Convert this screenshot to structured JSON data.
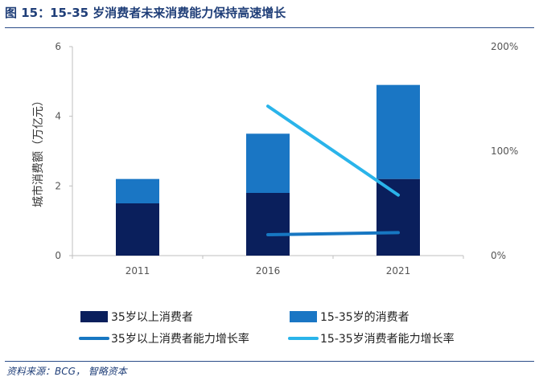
{
  "header": {
    "title": "图 15：15-35 岁消费者未来消费能力保持高速增长"
  },
  "footer": {
    "source": "资料来源：BCG，  智略资本"
  },
  "colors": {
    "bar_over35": "#0a1f5c",
    "bar_15_35": "#1a76c4",
    "line_over35": "#1777c2",
    "line_15_35": "#2ab4ea",
    "title": "#1f3e78"
  },
  "chart_data": {
    "type": "bar",
    "stacked": true,
    "title": "",
    "categories": [
      "2011",
      "2016",
      "2021"
    ],
    "ylabel": "城市消费额（万亿元）",
    "ylim": [
      0,
      6
    ],
    "yticks": [
      "0",
      "2",
      "4",
      "6"
    ],
    "y2lim": [
      0,
      200
    ],
    "y2ticks": [
      "0%",
      "100%",
      "200%"
    ],
    "series": [
      {
        "name": "35岁以上消费者",
        "kind": "bar",
        "axis": "left",
        "values": [
          1.5,
          1.8,
          2.2
        ]
      },
      {
        "name": "15-35岁的消费者",
        "kind": "bar",
        "axis": "left",
        "values": [
          0.7,
          1.7,
          2.7
        ]
      },
      {
        "name": "35岁以上消费者能力增长率",
        "kind": "line",
        "axis": "right",
        "values": [
          null,
          20,
          22
        ]
      },
      {
        "name": "15-35岁消费者能力增长率",
        "kind": "line",
        "axis": "right",
        "values": [
          null,
          143,
          58
        ]
      }
    ],
    "legend_position": "bottom"
  }
}
